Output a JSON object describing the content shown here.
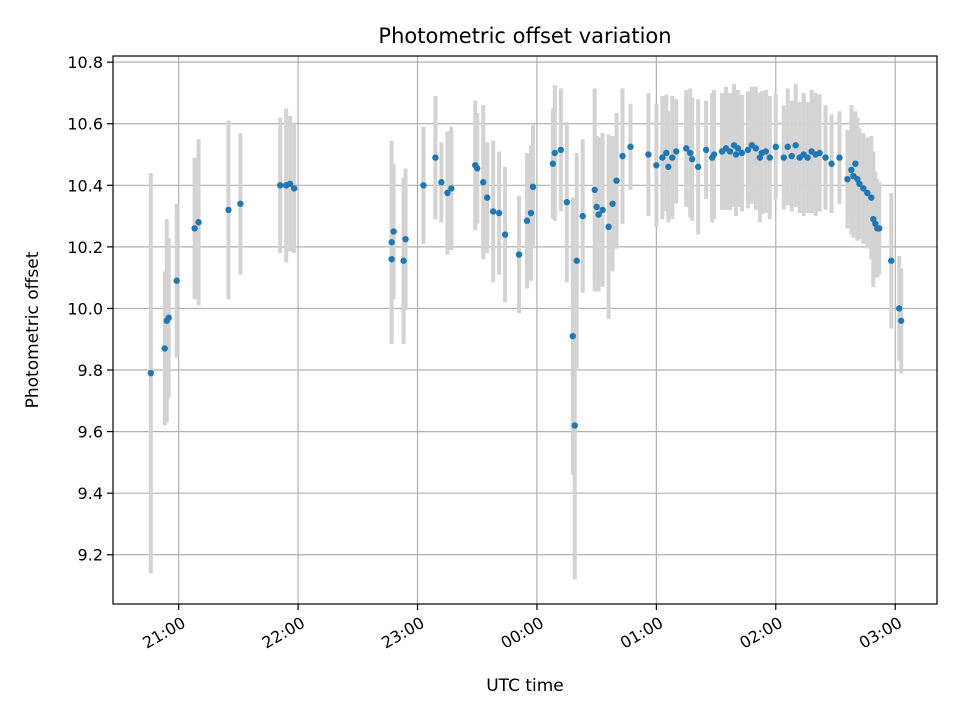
{
  "chart_data": {
    "type": "scatter",
    "title": "Photometric offset variation",
    "xlabel": "UTC time",
    "ylabel": "Photometric offset",
    "x_ticks": [
      "21:00",
      "22:00",
      "23:00",
      "00:00",
      "01:00",
      "02:00",
      "03:00"
    ],
    "y_ticks": [
      "9.2",
      "9.4",
      "9.6",
      "9.8",
      "10.0",
      "10.2",
      "10.4",
      "10.6",
      "10.8"
    ],
    "xlim": [
      "20:27",
      "03:21"
    ],
    "ylim": [
      9.04,
      10.82
    ],
    "grid": true,
    "marker_color": "#1f77b4",
    "errorbar_color": "#d3d3d3",
    "series": [
      {
        "x": [
          "20:46",
          "20:53",
          "20:54",
          "20:55",
          "20:59",
          "21:08",
          "21:10",
          "21:25",
          "21:31",
          "21:51",
          "21:54",
          "21:56",
          "21:58",
          "22:47",
          "22:47",
          "22:48",
          "22:53",
          "22:54",
          "23:03",
          "23:09",
          "23:12",
          "23:15",
          "23:17",
          "23:29",
          "23:30",
          "23:33",
          "23:35",
          "23:38",
          "23:41",
          "23:44",
          "23:51",
          "23:55",
          "23:57",
          "23:58",
          "00:08",
          "00:09",
          "00:12",
          "00:15",
          "00:18",
          "00:19",
          "00:20",
          "00:23",
          "00:29",
          "00:30",
          "00:31",
          "00:33",
          "00:36",
          "00:38",
          "00:40",
          "00:43",
          "00:47",
          "00:56",
          "01:00",
          "01:03",
          "01:05",
          "01:06",
          "01:08",
          "01:10",
          "01:15",
          "01:17",
          "01:18",
          "01:21",
          "01:25",
          "01:28",
          "01:29",
          "01:33",
          "01:35",
          "01:37",
          "01:39",
          "01:40",
          "01:41",
          "01:43",
          "01:46",
          "01:48",
          "01:50",
          "01:52",
          "01:53",
          "01:55",
          "01:57",
          "02:00",
          "02:04",
          "02:06",
          "02:08",
          "02:10",
          "02:12",
          "02:14",
          "02:16",
          "02:18",
          "02:20",
          "02:22",
          "02:25",
          "02:28",
          "02:32",
          "02:36",
          "02:38",
          "02:39",
          "02:40",
          "02:41",
          "02:42",
          "02:44",
          "02:46",
          "02:48",
          "02:49",
          "02:50",
          "02:51",
          "02:52",
          "02:58",
          "03:02",
          "03:03"
        ],
        "y": [
          9.79,
          9.87,
          9.96,
          9.97,
          10.09,
          10.26,
          10.28,
          10.32,
          10.34,
          10.4,
          10.4,
          10.405,
          10.39,
          10.16,
          10.215,
          10.25,
          10.155,
          10.225,
          10.4,
          10.49,
          10.41,
          10.375,
          10.39,
          10.465,
          10.455,
          10.41,
          10.36,
          10.315,
          10.31,
          10.24,
          10.175,
          10.285,
          10.31,
          10.395,
          10.47,
          10.505,
          10.515,
          10.345,
          9.91,
          9.62,
          10.155,
          10.3,
          10.385,
          10.33,
          10.305,
          10.32,
          10.265,
          10.34,
          10.415,
          10.495,
          10.525,
          10.5,
          10.465,
          10.49,
          10.505,
          10.46,
          10.49,
          10.51,
          10.52,
          10.505,
          10.485,
          10.46,
          10.515,
          10.49,
          10.5,
          10.51,
          10.52,
          10.51,
          10.53,
          10.5,
          10.52,
          10.505,
          10.515,
          10.53,
          10.52,
          10.49,
          10.505,
          10.51,
          10.49,
          10.525,
          10.49,
          10.525,
          10.495,
          10.53,
          10.49,
          10.5,
          10.49,
          10.51,
          10.5,
          10.505,
          10.49,
          10.47,
          10.49,
          10.42,
          10.45,
          10.43,
          10.47,
          10.42,
          10.405,
          10.39,
          10.375,
          10.36,
          10.29,
          10.275,
          10.26,
          10.26,
          10.155,
          10.0,
          9.96
        ],
        "err": [
          0.65,
          0.25,
          0.33,
          0.26,
          0.25,
          0.23,
          0.27,
          0.29,
          0.23,
          0.22,
          0.25,
          0.22,
          0.21,
          0.25,
          0.33,
          0.22,
          0.27,
          0.23,
          0.19,
          0.2,
          0.13,
          0.2,
          0.2,
          0.21,
          0.18,
          0.25,
          0.18,
          0.23,
          0.2,
          0.22,
          0.19,
          0.22,
          0.22,
          0.2,
          0.18,
          0.22,
          0.2,
          0.26,
          0.45,
          0.5,
          0.35,
          0.25,
          0.33,
          0.23,
          0.25,
          0.25,
          0.3,
          0.22,
          0.22,
          0.22,
          0.14,
          0.2,
          0.2,
          0.2,
          0.19,
          0.18,
          0.2,
          0.17,
          0.19,
          0.21,
          0.2,
          0.22,
          0.16,
          0.21,
          0.21,
          0.19,
          0.2,
          0.19,
          0.2,
          0.2,
          0.19,
          0.19,
          0.19,
          0.19,
          0.2,
          0.21,
          0.2,
          0.2,
          0.2,
          0.17,
          0.17,
          0.19,
          0.18,
          0.2,
          0.18,
          0.2,
          0.18,
          0.2,
          0.2,
          0.19,
          0.17,
          0.16,
          0.15,
          0.16,
          0.21,
          0.2,
          0.17,
          0.2,
          0.18,
          0.18,
          0.18,
          0.2,
          0.22,
          0.17,
          0.16,
          0.15,
          0.22,
          0.17,
          0.17
        ]
      }
    ]
  }
}
